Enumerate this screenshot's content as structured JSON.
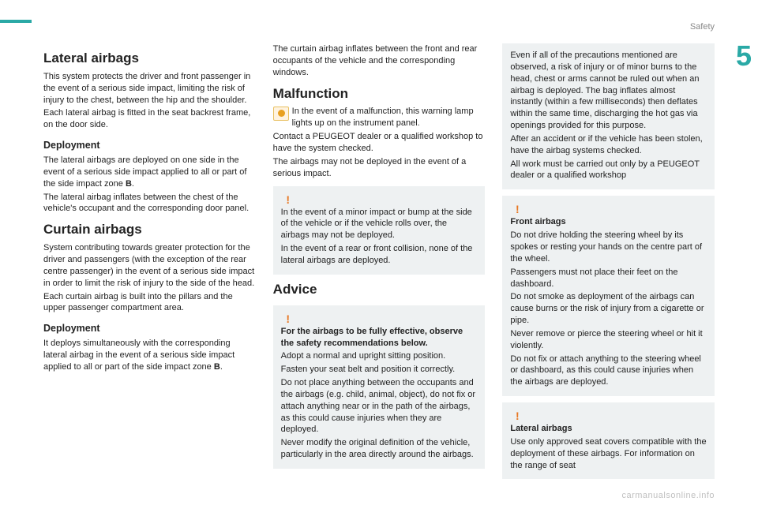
{
  "header": {
    "section": "Safety",
    "chapter": "5"
  },
  "watermark": "carmanualsonline.info",
  "col1": {
    "h2a": "Lateral airbags",
    "p1": "This system protects the driver and front passenger in the event of a serious side impact, limiting the risk of injury to the chest, between the hip and the shoulder.",
    "p2": "Each lateral airbag is fitted in the seat backrest frame, on the door side.",
    "h3a": "Deployment",
    "p3a": "The lateral airbags are deployed on one side in the event of a serious side impact applied to all or part of the side impact zone ",
    "p3b": "B",
    "p3c": ".",
    "p4": "The lateral airbag inflates between the chest of the vehicle's occupant and the corresponding door panel.",
    "h2b": "Curtain airbags",
    "p5": "System contributing towards greater protection for the driver and passengers (with the exception of the rear centre passenger) in the event of a serious side impact in order to limit the risk of injury to the side of the head.",
    "p6": "Each curtain airbag is built into the pillars and the upper passenger compartment area.",
    "h3b": "Deployment",
    "p7a": "It deploys simultaneously with the corresponding lateral airbag in the event of a serious side impact applied to all or part of the side impact zone ",
    "p7b": "B",
    "p7c": "."
  },
  "col2": {
    "p1": "The curtain airbag inflates between the front and rear occupants of the vehicle and the corresponding windows.",
    "h2a": "Malfunction",
    "p2": "In the event of a malfunction, this warning lamp lights up on the instrument panel.",
    "p3": "Contact a PEUGEOT dealer or a qualified workshop to have the system checked.",
    "p4": "The airbags may not be deployed in the event of a serious impact.",
    "box1a": "In the event of a minor impact or bump at the side of the vehicle or if the vehicle rolls over, the airbags may not be deployed.",
    "box1b": "In the event of a rear or front collision, none of the lateral airbags are deployed.",
    "h2b": "Advice",
    "box2lead": "For the airbags to be fully effective, observe the safety recommendations below.",
    "box2a": "Adopt a normal and upright sitting position.",
    "box2b": "Fasten your seat belt and position it correctly.",
    "box2c": "Do not place anything between the occupants and the airbags (e.g. child, animal, object), do not fix or attach anything near or in the path of the airbags, as this could cause injuries when they are deployed.",
    "box2d": "Never modify the original definition of the vehicle, particularly in the area directly around the airbags."
  },
  "col3": {
    "box1a": "Even if all of the precautions mentioned are observed, a risk of injury or of minor burns to the head, chest or arms cannot be ruled out when an airbag is deployed. The bag inflates almost instantly (within a few milliseconds) then deflates within the same time, discharging the hot gas via openings provided for this purpose.",
    "box1b": "After an accident or if the vehicle has been stolen, have the airbag systems checked.",
    "box1c": "All work must be carried out only by a PEUGEOT dealer or a qualified workshop",
    "box2title": "Front airbags",
    "box2a": "Do not drive holding the steering wheel by its spokes or resting your hands on the centre part of the wheel.",
    "box2b": "Passengers must not place their feet on the dashboard.",
    "box2c": "Do not smoke as deployment of the airbags can cause burns or the risk of injury from a cigarette or pipe.",
    "box2d": "Never remove or pierce the steering wheel or hit it violently.",
    "box2e": "Do not fix or attach anything to the steering wheel or dashboard, as this could cause injuries when the airbags are deployed.",
    "box3title": "Lateral airbags",
    "box3a": "Use only approved seat covers compatible with the deployment of these airbags. For information on the range of seat"
  }
}
